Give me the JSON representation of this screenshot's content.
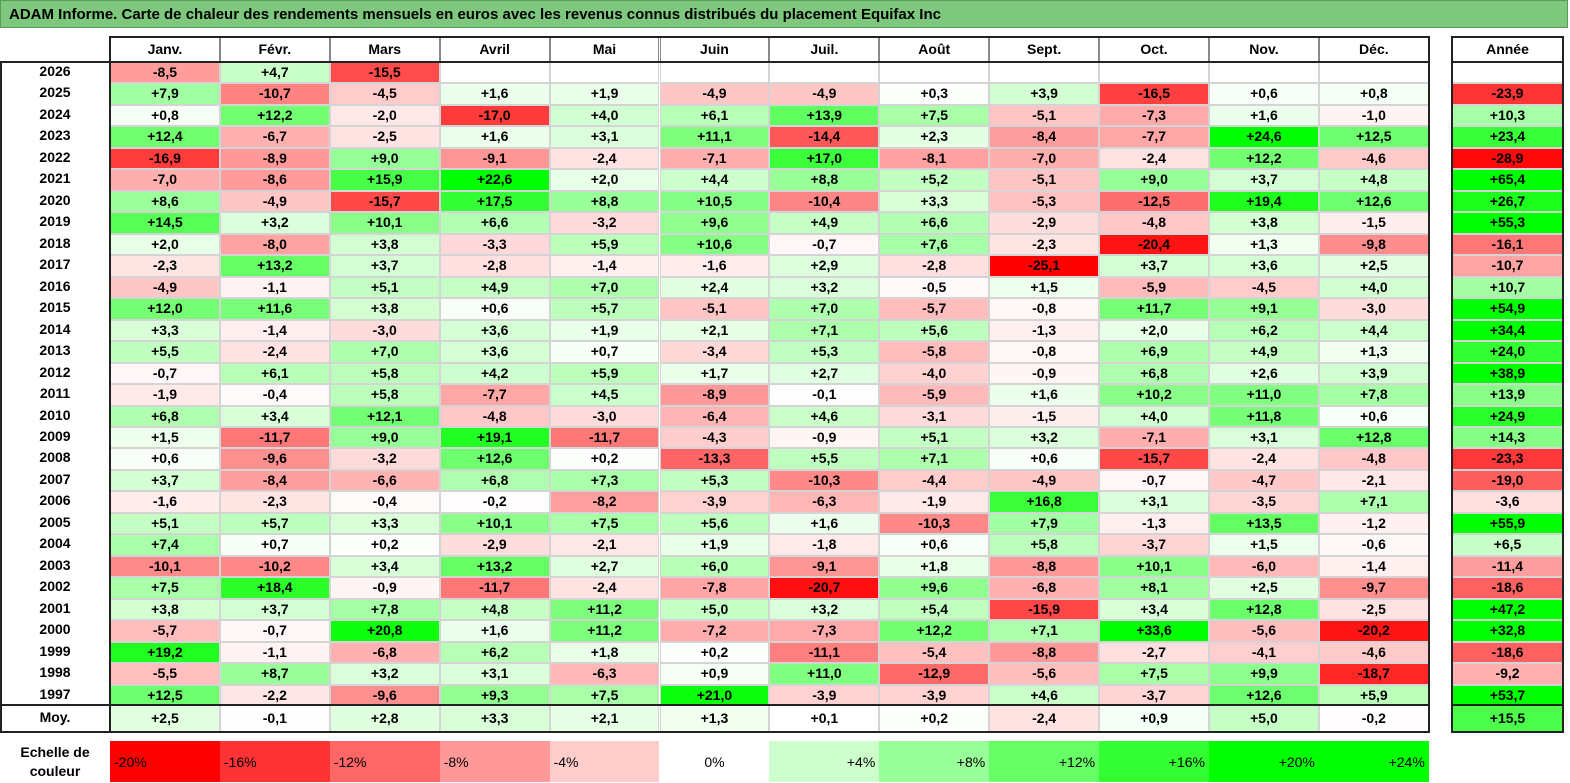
{
  "title": "ADAM Informe. Carte de chaleur des rendements mensuels en euros avec les revenus connus distribués du placement Equifax Inc",
  "chart_data": {
    "type": "heatmap",
    "columns": [
      "Janv.",
      "Févr.",
      "Mars",
      "Avril",
      "Mai",
      "Juin",
      "Juil.",
      "Août",
      "Sept.",
      "Oct.",
      "Nov.",
      "Déc."
    ],
    "year_header": "Année",
    "rows": [
      {
        "label": "2026",
        "values": [
          "-8,5",
          "+4,7",
          "-15,5",
          "",
          "",
          "",
          "",
          "",
          "",
          "",
          "",
          ""
        ],
        "year": ""
      },
      {
        "label": "2025",
        "values": [
          "+7,9",
          "-10,7",
          "-4,5",
          "+1,6",
          "+1,9",
          "-4,9",
          "-4,9",
          "+0,3",
          "+3,9",
          "-16,5",
          "+0,6",
          "+0,8"
        ],
        "year": "-23,9"
      },
      {
        "label": "2024",
        "values": [
          "+0,8",
          "+12,2",
          "-2,0",
          "-17,0",
          "+4,0",
          "+6,1",
          "+13,9",
          "+7,5",
          "-5,1",
          "-7,3",
          "+1,6",
          "-1,0"
        ],
        "year": "+10,3"
      },
      {
        "label": "2023",
        "values": [
          "+12,4",
          "-6,7",
          "-2,5",
          "+1,6",
          "+3,1",
          "+11,1",
          "-14,4",
          "+2,3",
          "-8,4",
          "-7,7",
          "+24,6",
          "+12,5"
        ],
        "year": "+23,4"
      },
      {
        "label": "2022",
        "values": [
          "-16,9",
          "-8,9",
          "+9,0",
          "-9,1",
          "-2,4",
          "-7,1",
          "+17,0",
          "-8,1",
          "-7,0",
          "-2,4",
          "+12,2",
          "-4,6"
        ],
        "year": "-28,9"
      },
      {
        "label": "2021",
        "values": [
          "-7,0",
          "-8,6",
          "+15,9",
          "+22,6",
          "+2,0",
          "+4,4",
          "+8,8",
          "+5,2",
          "-5,1",
          "+9,0",
          "+3,7",
          "+4,8"
        ],
        "year": "+65,4"
      },
      {
        "label": "2020",
        "values": [
          "+8,6",
          "-4,9",
          "-15,7",
          "+17,5",
          "+8,8",
          "+10,5",
          "-10,4",
          "+3,3",
          "-5,3",
          "-12,5",
          "+19,4",
          "+12,6"
        ],
        "year": "+26,7"
      },
      {
        "label": "2019",
        "values": [
          "+14,5",
          "+3,2",
          "+10,1",
          "+6,6",
          "-3,2",
          "+9,6",
          "+4,9",
          "+6,6",
          "-2,9",
          "-4,8",
          "+3,8",
          "-1,5"
        ],
        "year": "+55,3"
      },
      {
        "label": "2018",
        "values": [
          "+2,0",
          "-8,0",
          "+3,8",
          "-3,3",
          "+5,9",
          "+10,6",
          "-0,7",
          "+7,6",
          "-2,3",
          "-20,4",
          "+1,3",
          "-9,8"
        ],
        "year": "-16,1"
      },
      {
        "label": "2017",
        "values": [
          "-2,3",
          "+13,2",
          "+3,7",
          "-2,8",
          "-1,4",
          "-1,6",
          "+2,9",
          "-2,8",
          "-25,1",
          "+3,7",
          "+3,6",
          "+2,5"
        ],
        "year": "-10,7"
      },
      {
        "label": "2016",
        "values": [
          "-4,9",
          "-1,1",
          "+5,1",
          "+4,9",
          "+7,0",
          "+2,4",
          "+3,2",
          "-0,5",
          "+1,5",
          "-5,9",
          "-4,5",
          "+4,0"
        ],
        "year": "+10,7"
      },
      {
        "label": "2015",
        "values": [
          "+12,0",
          "+11,6",
          "+3,8",
          "+0,6",
          "+5,7",
          "-5,1",
          "+7,0",
          "-5,7",
          "-0,8",
          "+11,7",
          "+9,1",
          "-3,0"
        ],
        "year": "+54,9"
      },
      {
        "label": "2014",
        "values": [
          "+3,3",
          "-1,4",
          "-3,0",
          "+3,6",
          "+1,9",
          "+2,1",
          "+7,1",
          "+5,6",
          "-1,3",
          "+2,0",
          "+6,2",
          "+4,4"
        ],
        "year": "+34,4"
      },
      {
        "label": "2013",
        "values": [
          "+5,5",
          "-2,4",
          "+7,0",
          "+3,6",
          "+0,7",
          "-3,4",
          "+5,3",
          "-5,8",
          "-0,8",
          "+6,9",
          "+4,9",
          "+1,3"
        ],
        "year": "+24,0"
      },
      {
        "label": "2012",
        "values": [
          "-0,7",
          "+6,1",
          "+5,8",
          "+4,2",
          "+5,9",
          "+1,7",
          "+2,7",
          "-4,0",
          "-0,9",
          "+6,8",
          "+2,6",
          "+3,9"
        ],
        "year": "+38,9"
      },
      {
        "label": "2011",
        "values": [
          "-1,9",
          "-0,4",
          "+5,8",
          "-7,7",
          "+4,5",
          "-8,9",
          "-0,1",
          "-5,9",
          "+1,6",
          "+10,2",
          "+11,0",
          "+7,8"
        ],
        "year": "+13,9"
      },
      {
        "label": "2010",
        "values": [
          "+6,8",
          "+3,4",
          "+12,1",
          "-4,8",
          "-3,0",
          "-6,4",
          "+4,6",
          "-3,1",
          "-1,5",
          "+4,0",
          "+11,8",
          "+0,6"
        ],
        "year": "+24,9"
      },
      {
        "label": "2009",
        "values": [
          "+1,5",
          "-11,7",
          "+9,0",
          "+19,1",
          "-11,7",
          "-4,3",
          "-0,9",
          "+5,1",
          "+3,2",
          "-7,1",
          "+3,1",
          "+12,8"
        ],
        "year": "+14,3"
      },
      {
        "label": "2008",
        "values": [
          "+0,6",
          "-9,6",
          "-3,2",
          "+12,6",
          "+0,2",
          "-13,3",
          "+5,5",
          "+7,1",
          "+0,6",
          "-15,7",
          "-2,4",
          "-4,8"
        ],
        "year": "-23,3"
      },
      {
        "label": "2007",
        "values": [
          "+3,7",
          "-8,4",
          "-6,6",
          "+6,8",
          "+7,3",
          "+5,3",
          "-10,3",
          "-4,4",
          "-4,9",
          "-0,7",
          "-4,7",
          "-2,1"
        ],
        "year": "-19,0"
      },
      {
        "label": "2006",
        "values": [
          "-1,6",
          "-2,3",
          "-0,4",
          "-0,2",
          "-8,2",
          "-3,9",
          "-6,3",
          "-1,9",
          "+16,8",
          "+3,1",
          "-3,5",
          "+7,1"
        ],
        "year": "-3,6"
      },
      {
        "label": "2005",
        "values": [
          "+5,1",
          "+5,7",
          "+3,3",
          "+10,1",
          "+7,5",
          "+5,6",
          "+1,6",
          "-10,3",
          "+7,9",
          "-1,3",
          "+13,5",
          "-1,2"
        ],
        "year": "+55,9"
      },
      {
        "label": "2004",
        "values": [
          "+7,4",
          "+0,7",
          "+0,2",
          "-2,9",
          "-2,1",
          "+1,9",
          "-1,8",
          "+0,6",
          "+5,8",
          "-3,7",
          "+1,5",
          "-0,6"
        ],
        "year": "+6,5"
      },
      {
        "label": "2003",
        "values": [
          "-10,1",
          "-10,2",
          "+3,4",
          "+13,2",
          "+2,7",
          "+6,0",
          "-9,1",
          "+1,8",
          "-8,8",
          "+10,1",
          "-6,0",
          "-1,4"
        ],
        "year": "-11,4"
      },
      {
        "label": "2002",
        "values": [
          "+7,5",
          "+18,4",
          "-0,9",
          "-11,7",
          "-2,4",
          "-7,8",
          "-20,7",
          "+9,6",
          "-6,8",
          "+8,1",
          "+2,5",
          "-9,7"
        ],
        "year": "-18,6"
      },
      {
        "label": "2001",
        "values": [
          "+3,8",
          "+3,7",
          "+7,8",
          "+4,8",
          "+11,2",
          "+5,0",
          "+3,2",
          "+5,4",
          "-15,9",
          "+3,4",
          "+12,8",
          "-2,5"
        ],
        "year": "+47,2"
      },
      {
        "label": "2000",
        "values": [
          "-5,7",
          "-0,7",
          "+20,8",
          "+1,6",
          "+11,2",
          "-7,2",
          "-7,3",
          "+12,2",
          "+7,1",
          "+33,6",
          "-5,6",
          "-20,2"
        ],
        "year": "+32,8"
      },
      {
        "label": "1999",
        "values": [
          "+19,2",
          "-1,1",
          "-6,8",
          "+6,2",
          "+1,8",
          "+0,2",
          "-11,1",
          "-5,4",
          "-8,8",
          "-2,7",
          "-4,1",
          "-4,6"
        ],
        "year": "-18,6"
      },
      {
        "label": "1998",
        "values": [
          "-5,5",
          "+8,7",
          "+3,2",
          "+3,1",
          "-6,3",
          "+0,9",
          "+11,0",
          "-12,9",
          "-5,6",
          "+7,5",
          "+9,9",
          "-18,7"
        ],
        "year": "-9,2"
      },
      {
        "label": "1997",
        "values": [
          "+12,5",
          "-2,2",
          "-9,6",
          "+9,3",
          "+7,5",
          "+21,0",
          "-3,9",
          "-3,9",
          "+4,6",
          "-3,7",
          "+12,6",
          "+5,9"
        ],
        "year": "+53,7"
      }
    ],
    "average": {
      "label": "Moy.",
      "values": [
        "+2,5",
        "-0,1",
        "+2,8",
        "+3,3",
        "+2,1",
        "+1,3",
        "+0,1",
        "+0,2",
        "-2,4",
        "+0,9",
        "+5,0",
        "-0,2"
      ],
      "year": "+15,5"
    },
    "scale": {
      "label_line1": "Echelle de",
      "label_line2": "couleur",
      "steps": [
        "-20%",
        "-16%",
        "-12%",
        "-8%",
        "-4%",
        "0%",
        "+4%",
        "+8%",
        "+12%",
        "+16%",
        "+20%",
        "+24%"
      ],
      "step_values": [
        -20,
        -16,
        -12,
        -8,
        -4,
        0,
        4,
        8,
        12,
        16,
        20,
        24
      ]
    },
    "colors": {
      "neg_full": "#ff0000",
      "pos_full": "#00ff00",
      "neutral": "#ffffff",
      "title_bg": "#7dc87d"
    }
  }
}
